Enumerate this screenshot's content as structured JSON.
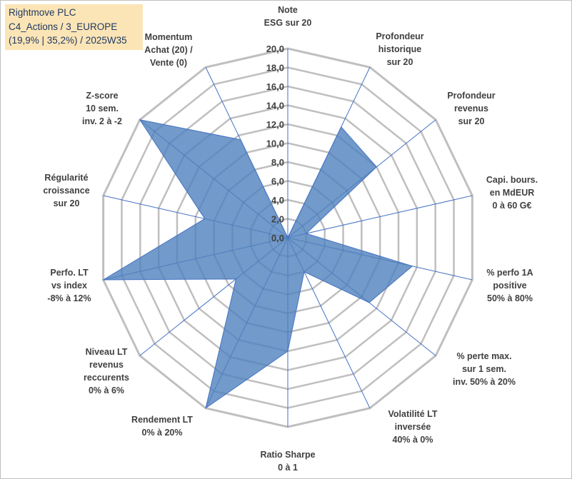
{
  "header": {
    "title_line1": "Rightmove PLC",
    "title_line2": "C4_Actions / 3_EUROPE",
    "title_line3": "(19,9% | 35,2%) / 2025W35"
  },
  "chart_data": {
    "type": "radar",
    "rlim": [
      0,
      20
    ],
    "ticks": [
      "0,0",
      "2,0",
      "4,0",
      "6,0",
      "8,0",
      "10,0",
      "12,0",
      "14,0",
      "16,0",
      "18,0",
      "20,0"
    ],
    "axes": [
      [
        "Note",
        "ESG sur 20"
      ],
      [
        "Profondeur",
        "historique",
        "sur 20"
      ],
      [
        "Profondeur",
        "revenus",
        "sur 20"
      ],
      [
        "Capi. bours.",
        "en MdEUR",
        "0 à 60 G€"
      ],
      [
        "% perfo 1A",
        "positive",
        "50% à 80%"
      ],
      [
        "% perte max.",
        "sur 1 sem.",
        "inv. 50% à 20%"
      ],
      [
        "Volatilité LT",
        "inversée",
        "40% à 0%"
      ],
      [
        "Ratio Sharpe",
        "0 à 1"
      ],
      [
        "Rendement LT",
        "0% à 20%"
      ],
      [
        "Niveau LT",
        "revenus",
        "reccurents",
        "0% à 6%"
      ],
      [
        "Perfo. LT",
        "vs index",
        "-8% à 12%"
      ],
      [
        "Régularité",
        "croissance",
        "sur 20"
      ],
      [
        "Z-score",
        "10 sem.",
        "inv. 2 à -2"
      ],
      [
        "Momentum",
        "Achat (20) /",
        "Vente (0)"
      ]
    ],
    "series": [
      {
        "values": [
          0,
          13,
          12,
          2,
          13.5,
          11,
          4,
          12,
          20,
          7,
          20,
          9,
          20,
          11.5
        ]
      }
    ],
    "colors": {
      "fill": "#4f81bd",
      "stroke": "#4472c4",
      "grid": "#bfbfbf",
      "spoke": "#4472c4"
    },
    "grid": true,
    "legend": "none"
  }
}
